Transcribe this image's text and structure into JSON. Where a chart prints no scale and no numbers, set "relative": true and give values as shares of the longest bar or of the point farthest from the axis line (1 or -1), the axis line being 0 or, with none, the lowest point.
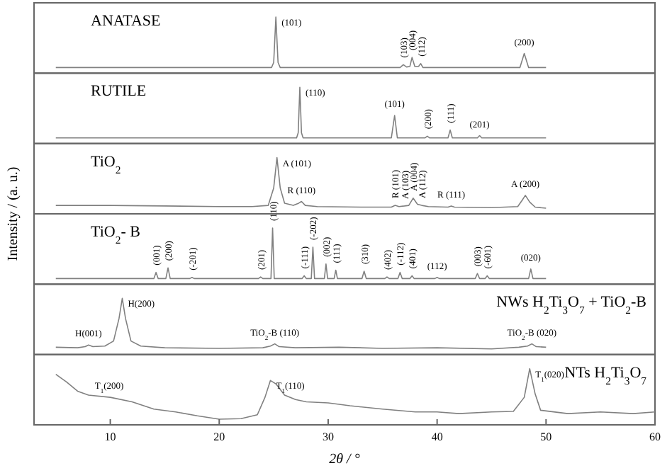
{
  "chart_data": [
    {
      "type": "line",
      "title": "ANATASE",
      "relative": true,
      "xlim": [
        3,
        60
      ],
      "tick_labels": false,
      "series": [
        {
          "color": "#808080",
          "x": [
            5,
            24.8,
            25.0,
            25.2,
            25.4,
            25.6,
            36.6,
            36.9,
            37.2,
            37.5,
            37.7,
            37.95,
            38.3,
            38.5,
            38.7,
            47.6,
            48.0,
            48.4,
            50
          ],
          "values": [
            0.1,
            0.1,
            0.19,
            1.0,
            0.19,
            0.1,
            0.1,
            0.15,
            0.11,
            0.12,
            0.28,
            0.12,
            0.12,
            0.17,
            0.1,
            0.1,
            0.35,
            0.1,
            0.1
          ]
        }
      ],
      "annotations": [
        {
          "text": "(101)",
          "x": 25.2,
          "y": 1.0
        },
        {
          "text": "(103)",
          "x": 36.9,
          "y": 0.15
        },
        {
          "text": "(004)",
          "x": 37.7,
          "y": 0.28
        },
        {
          "text": "(112)",
          "x": 38.5,
          "y": 0.17
        },
        {
          "text": "(200)",
          "x": 48.0,
          "y": 0.35
        }
      ]
    },
    {
      "type": "line",
      "title": "RUTILE",
      "relative": true,
      "xlim": [
        3,
        60
      ],
      "tick_labels": false,
      "series": [
        {
          "color": "#808080",
          "x": [
            5,
            27.1,
            27.25,
            27.4,
            27.55,
            27.7,
            35.8,
            36.1,
            36.35,
            38.9,
            39.1,
            39.3,
            41.0,
            41.2,
            41.4,
            43.7,
            43.9,
            44.1,
            50
          ],
          "values": [
            0.1,
            0.1,
            0.19,
            1.0,
            0.19,
            0.1,
            0.1,
            0.5,
            0.1,
            0.1,
            0.13,
            0.1,
            0.1,
            0.24,
            0.1,
            0.1,
            0.14,
            0.1,
            0.1
          ]
        }
      ],
      "annotations": [
        {
          "text": "(110)",
          "x": 27.4,
          "y": 1.0
        },
        {
          "text": "(101)",
          "x": 36.1,
          "y": 0.5
        },
        {
          "text": "(200)",
          "x": 39.1,
          "y": 0.13
        },
        {
          "text": "(111)",
          "x": 41.2,
          "y": 0.24
        },
        {
          "text": "(201)",
          "x": 43.9,
          "y": 0.14
        }
      ]
    },
    {
      "type": "line",
      "title": "TiO$_{2}$",
      "ylabel": "Intensity / (a. u.)",
      "relative": true,
      "xlim": [
        3,
        60
      ],
      "tick_labels": false,
      "series": [
        {
          "color": "#808080",
          "x": [
            5,
            10,
            15,
            20,
            23,
            24.5,
            25.0,
            25.3,
            25.6,
            26.0,
            26.8,
            27.3,
            27.55,
            27.9,
            29,
            33,
            35.8,
            36.15,
            36.5,
            37.0,
            37.4,
            37.8,
            38.2,
            38.6,
            39.2,
            41.0,
            41.3,
            41.6,
            45,
            47.4,
            47.8,
            48.1,
            48.5,
            49,
            50
          ],
          "values": [
            0.15,
            0.15,
            0.14,
            0.13,
            0.13,
            0.15,
            0.46,
            1.0,
            0.46,
            0.19,
            0.15,
            0.19,
            0.22,
            0.15,
            0.13,
            0.12,
            0.12,
            0.15,
            0.13,
            0.14,
            0.15,
            0.28,
            0.17,
            0.15,
            0.13,
            0.12,
            0.14,
            0.12,
            0.11,
            0.13,
            0.24,
            0.33,
            0.21,
            0.12,
            0.1
          ]
        }
      ],
      "annotations": [
        {
          "text": "A (101)",
          "x": 25.3,
          "y": 1.0
        },
        {
          "text": "R (110)",
          "x": 27.55,
          "y": 0.22
        },
        {
          "text": "R (101)",
          "x": 36.15,
          "y": 0.15
        },
        {
          "text": "A (103)",
          "x": 37.0,
          "y": 0.14
        },
        {
          "text": "A (004)",
          "x": 37.8,
          "y": 0.28
        },
        {
          "text": "A (112)",
          "x": 38.6,
          "y": 0.15
        },
        {
          "text": "R (111)",
          "x": 41.3,
          "y": 0.14
        },
        {
          "text": "A (200)",
          "x": 48.1,
          "y": 0.33
        }
      ]
    },
    {
      "type": "line",
      "title": "TiO$_{2}$- B",
      "relative": true,
      "xlim": [
        3,
        60
      ],
      "tick_labels": false,
      "series": [
        {
          "color": "#808080",
          "x": [
            5,
            14.0,
            14.2,
            14.4,
            15.1,
            15.3,
            15.5,
            17.3,
            17.5,
            17.7,
            23.6,
            23.8,
            24.0,
            24.75,
            24.9,
            25.05,
            27.6,
            27.8,
            28.0,
            28.45,
            28.6,
            28.75,
            29.65,
            29.8,
            29.95,
            30.55,
            30.7,
            30.85,
            33.1,
            33.3,
            33.5,
            35.2,
            35.4,
            35.6,
            36.4,
            36.6,
            36.8,
            37.5,
            37.7,
            37.9,
            39.8,
            40.0,
            40.2,
            43.5,
            43.7,
            43.9,
            44.4,
            44.6,
            44.8,
            48.4,
            48.6,
            48.8,
            50
          ],
          "values": [
            0.1,
            0.1,
            0.21,
            0.1,
            0.1,
            0.29,
            0.1,
            0.1,
            0.12,
            0.1,
            0.1,
            0.13,
            0.1,
            0.1,
            1.0,
            0.1,
            0.1,
            0.15,
            0.1,
            0.1,
            0.66,
            0.1,
            0.1,
            0.36,
            0.1,
            0.1,
            0.25,
            0.1,
            0.1,
            0.23,
            0.1,
            0.1,
            0.13,
            0.1,
            0.1,
            0.21,
            0.1,
            0.1,
            0.15,
            0.1,
            0.1,
            0.12,
            0.1,
            0.1,
            0.19,
            0.1,
            0.1,
            0.15,
            0.1,
            0.1,
            0.27,
            0.1,
            0.1
          ]
        }
      ],
      "annotations": [
        {
          "text": "(001)",
          "x": 14.2,
          "y": 0.21
        },
        {
          "text": "(200)",
          "x": 15.3,
          "y": 0.29
        },
        {
          "text": "(-201)",
          "x": 17.5,
          "y": 0.12
        },
        {
          "text": "(201)",
          "x": 23.8,
          "y": 0.13
        },
        {
          "text": "(110)",
          "x": 24.9,
          "y": 1.0
        },
        {
          "text": "(-111)",
          "x": 27.8,
          "y": 0.15
        },
        {
          "text": "(-202)",
          "x": 28.6,
          "y": 0.66
        },
        {
          "text": "(002)",
          "x": 29.8,
          "y": 0.36
        },
        {
          "text": "(111)",
          "x": 30.7,
          "y": 0.25
        },
        {
          "text": "(310)",
          "x": 33.3,
          "y": 0.23
        },
        {
          "text": "(402)",
          "x": 35.4,
          "y": 0.13
        },
        {
          "text": "(-112)",
          "x": 36.6,
          "y": 0.21
        },
        {
          "text": "(401)",
          "x": 37.7,
          "y": 0.15
        },
        {
          "text": "(112)",
          "x": 40.0,
          "y": 0.12
        },
        {
          "text": "(003)",
          "x": 43.7,
          "y": 0.19
        },
        {
          "text": "(-601)",
          "x": 44.6,
          "y": 0.15
        },
        {
          "text": "(020)",
          "x": 48.6,
          "y": 0.27
        }
      ]
    },
    {
      "type": "line",
      "title": "NWs H$_{2}$Ti$_{3}$O$_{7}$ + TiO$_{2}$-B",
      "relative": true,
      "xlim": [
        3,
        60
      ],
      "tick_labels": false,
      "series": [
        {
          "color": "#808080",
          "x": [
            5,
            7,
            7.7,
            8.0,
            8.4,
            9.5,
            10.3,
            10.8,
            11.1,
            11.4,
            11.9,
            12.8,
            15,
            20,
            24,
            24.7,
            25.1,
            25.5,
            27,
            31,
            35,
            40,
            45,
            47.5,
            48.3,
            48.7,
            49.1,
            50
          ],
          "values": [
            0.13,
            0.12,
            0.14,
            0.17,
            0.14,
            0.15,
            0.24,
            0.64,
            1.0,
            0.64,
            0.24,
            0.15,
            0.12,
            0.11,
            0.12,
            0.15,
            0.19,
            0.14,
            0.12,
            0.13,
            0.11,
            0.12,
            0.1,
            0.13,
            0.15,
            0.19,
            0.14,
            0.13
          ]
        }
      ],
      "annotations": [
        {
          "text": "H(001)",
          "x": 8.0,
          "y": 0.17
        },
        {
          "text": "H(200)",
          "x": 11.1,
          "y": 1.0
        },
        {
          "text": "TiO$_{2}$-B (110)",
          "x": 25.1,
          "y": 0.19
        },
        {
          "text": "TiO$_{2}$-B (020)",
          "x": 48.7,
          "y": 0.19
        }
      ]
    },
    {
      "type": "line",
      "title": "NTs H$_{2}$Ti$_{3}$O$_{7}$",
      "xlabel": "2θ / °",
      "relative": true,
      "xlim": [
        3,
        60
      ],
      "xticks": [
        10,
        20,
        30,
        40,
        50,
        60
      ],
      "tick_labels": "x",
      "series": [
        {
          "color": "#808080",
          "x": [
            5,
            6,
            7,
            8,
            10,
            12,
            14,
            16,
            18,
            20,
            22,
            23.5,
            24.2,
            24.7,
            25.2,
            26,
            27,
            28,
            30,
            32,
            35,
            38,
            40,
            42,
            45,
            47,
            48,
            48.5,
            49,
            49.5,
            52,
            55,
            58,
            60
          ],
          "values": [
            0.9,
            0.76,
            0.6,
            0.53,
            0.49,
            0.41,
            0.28,
            0.23,
            0.16,
            0.1,
            0.11,
            0.18,
            0.49,
            0.79,
            0.73,
            0.53,
            0.45,
            0.41,
            0.39,
            0.34,
            0.28,
            0.23,
            0.23,
            0.2,
            0.23,
            0.24,
            0.49,
            1.0,
            0.55,
            0.26,
            0.2,
            0.23,
            0.2,
            0.23
          ]
        }
      ],
      "annotations": [
        {
          "text": "T$_{1}$(200)",
          "x": 9.9,
          "y": 0.49
        },
        {
          "text": "T$_{1}$(110)",
          "x": 24.7,
          "y": 0.79
        },
        {
          "text": "T$_{1}$(020)",
          "x": 48.5,
          "y": 1.0
        }
      ]
    }
  ]
}
